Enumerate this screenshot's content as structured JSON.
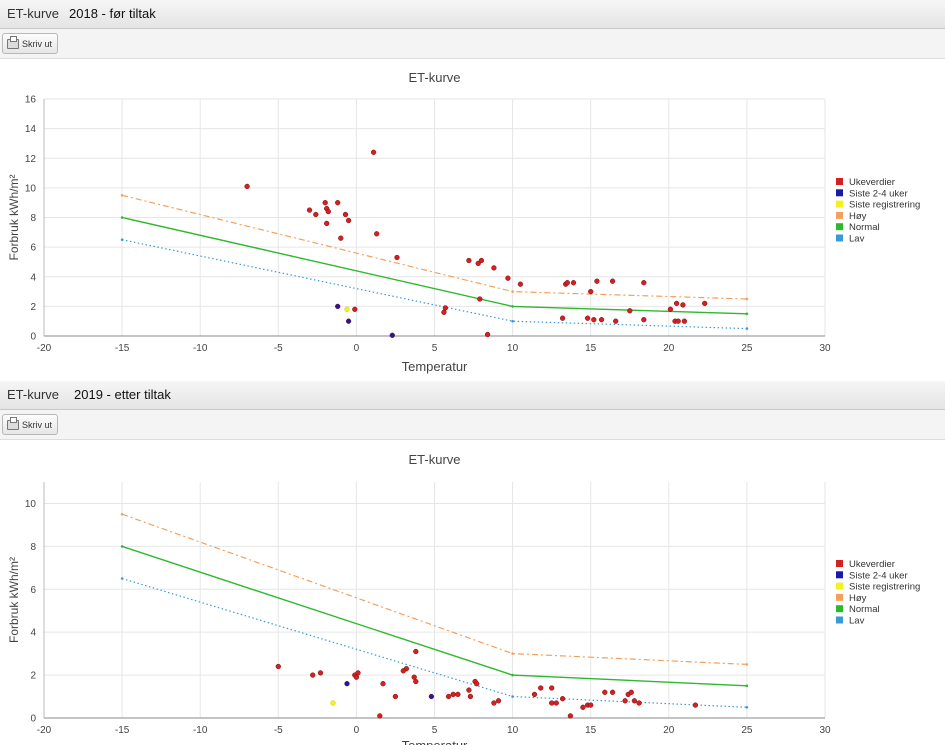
{
  "top": {
    "app_label": "ET-kurve",
    "subtitle": "2018 - før tiltak",
    "print_label": "Skriv ut"
  },
  "bottom": {
    "app_label": "ET-kurve",
    "subtitle": "2019 - etter tiltak",
    "print_label": "Skriv ut"
  },
  "colors": {
    "ukeverdier": "#d42020",
    "siste24": "#1a1aa8",
    "siste_registrering": "#f2f222",
    "hoy": "#f5a05a",
    "normal": "#2eb82e",
    "lav": "#3a9ad9"
  },
  "chart_data": [
    {
      "type": "scatter",
      "title": "ET-kurve",
      "xlabel": "Temperatur",
      "ylabel": "Forbruk kWh/m²",
      "xlim": [
        -20,
        30
      ],
      "ylim": [
        0,
        16
      ],
      "xticks": [
        -20,
        -15,
        -10,
        -5,
        0,
        5,
        10,
        15,
        20,
        25,
        30
      ],
      "yticks": [
        0,
        2,
        4,
        6,
        8,
        10,
        12,
        14,
        16
      ],
      "grid": true,
      "legend_position": "right",
      "legend": [
        "Ukeverdier",
        "Siste 2-4 uker",
        "Siste registrering",
        "Høy",
        "Normal",
        "Lav"
      ],
      "series": [
        {
          "name": "Ukeverdier",
          "kind": "points",
          "points": [
            [
              -7,
              10.1
            ],
            [
              1.1,
              12.4
            ],
            [
              -3,
              8.5
            ],
            [
              -2.6,
              8.2
            ],
            [
              -2,
              9
            ],
            [
              -1.9,
              8.6
            ],
            [
              -1.8,
              8.4
            ],
            [
              -1.9,
              7.6
            ],
            [
              -1.2,
              9
            ],
            [
              -0.7,
              8.2
            ],
            [
              -0.5,
              7.8
            ],
            [
              -1,
              6.6
            ],
            [
              1.3,
              6.9
            ],
            [
              2.6,
              5.3
            ],
            [
              5.7,
              1.9
            ],
            [
              5.6,
              1.6
            ],
            [
              7.2,
              5.1
            ],
            [
              7.8,
              4.9
            ],
            [
              8,
              5.1
            ],
            [
              8.8,
              4.6
            ],
            [
              7.9,
              2.5
            ],
            [
              9.7,
              3.9
            ],
            [
              10.5,
              3.5
            ],
            [
              8.4,
              0.1
            ],
            [
              13.4,
              3.5
            ],
            [
              13.5,
              3.6
            ],
            [
              13.9,
              3.6
            ],
            [
              15.4,
              3.7
            ],
            [
              16.4,
              3.7
            ],
            [
              18.4,
              3.6
            ],
            [
              15,
              3
            ],
            [
              13.2,
              1.2
            ],
            [
              14.8,
              1.2
            ],
            [
              15.2,
              1.1
            ],
            [
              15.7,
              1.1
            ],
            [
              16.6,
              1
            ],
            [
              17.5,
              1.7
            ],
            [
              18.4,
              1.1
            ],
            [
              20.1,
              1.8
            ],
            [
              20.5,
              2.2
            ],
            [
              20.9,
              2.1
            ],
            [
              22.3,
              2.2
            ],
            [
              20.4,
              1
            ],
            [
              20.6,
              1
            ],
            [
              21,
              1
            ],
            [
              -0.1,
              1.8
            ]
          ]
        },
        {
          "name": "Siste 2-4 uker",
          "kind": "points",
          "points": [
            [
              -1.2,
              2
            ],
            [
              -0.5,
              1
            ],
            [
              2.3,
              0.05
            ]
          ]
        },
        {
          "name": "Siste registrering",
          "kind": "points",
          "points": [
            [
              -0.6,
              1.8
            ]
          ]
        },
        {
          "name": "Høy",
          "kind": "line",
          "x": [
            -15,
            10,
            25
          ],
          "y": [
            9.5,
            3,
            2.5
          ]
        },
        {
          "name": "Normal",
          "kind": "line",
          "x": [
            -15,
            10,
            25
          ],
          "y": [
            8,
            2,
            1.5
          ]
        },
        {
          "name": "Lav",
          "kind": "line",
          "x": [
            -15,
            10,
            25
          ],
          "y": [
            6.5,
            1,
            0.5
          ]
        }
      ]
    },
    {
      "type": "scatter",
      "title": "ET-kurve",
      "xlabel": "Temperatur",
      "ylabel": "Forbruk kWh/m²",
      "xlim": [
        -20,
        30
      ],
      "ylim": [
        0,
        11
      ],
      "xticks": [
        -20,
        -15,
        -10,
        -5,
        0,
        5,
        10,
        15,
        20,
        25,
        30
      ],
      "yticks": [
        0,
        2,
        4,
        6,
        8,
        10
      ],
      "grid": true,
      "legend_position": "right",
      "legend": [
        "Ukeverdier",
        "Siste 2-4 uker",
        "Siste registrering",
        "Høy",
        "Normal",
        "Lav"
      ],
      "series": [
        {
          "name": "Ukeverdier",
          "kind": "points",
          "points": [
            [
              -5,
              2.4
            ],
            [
              -2.8,
              2
            ],
            [
              -2.3,
              2.1
            ],
            [
              -0.1,
              2
            ],
            [
              0,
              1.9
            ],
            [
              0.1,
              2.1
            ],
            [
              1.5,
              0.1
            ],
            [
              1.7,
              1.6
            ],
            [
              2.5,
              1
            ],
            [
              3,
              2.2
            ],
            [
              3.2,
              2.3
            ],
            [
              3.7,
              1.9
            ],
            [
              3.8,
              1.7
            ],
            [
              3.8,
              3.1
            ],
            [
              5.9,
              1
            ],
            [
              6.2,
              1.1
            ],
            [
              6.5,
              1.1
            ],
            [
              7.2,
              1.3
            ],
            [
              7.3,
              1
            ],
            [
              7.6,
              1.7
            ],
            [
              7.7,
              1.6
            ],
            [
              8.8,
              0.7
            ],
            [
              9.1,
              0.8
            ],
            [
              11.4,
              1.1
            ],
            [
              11.8,
              1.4
            ],
            [
              12.5,
              1.4
            ],
            [
              12.5,
              0.7
            ],
            [
              12.8,
              0.7
            ],
            [
              13.2,
              0.9
            ],
            [
              13.7,
              0.1
            ],
            [
              14.5,
              0.5
            ],
            [
              14.8,
              0.6
            ],
            [
              15,
              0.6
            ],
            [
              15.9,
              1.2
            ],
            [
              16.4,
              1.2
            ],
            [
              17.2,
              0.8
            ],
            [
              17.4,
              1.1
            ],
            [
              17.6,
              1.2
            ],
            [
              17.8,
              0.8
            ],
            [
              18.1,
              0.7
            ],
            [
              21.7,
              0.6
            ]
          ]
        },
        {
          "name": "Siste 2-4 uker",
          "kind": "points",
          "points": [
            [
              -0.6,
              1.6
            ],
            [
              4.8,
              1
            ]
          ]
        },
        {
          "name": "Siste registrering",
          "kind": "points",
          "points": [
            [
              -1.5,
              0.7
            ]
          ]
        },
        {
          "name": "Høy",
          "kind": "line",
          "x": [
            -15,
            10,
            25
          ],
          "y": [
            9.5,
            3,
            2.5
          ]
        },
        {
          "name": "Normal",
          "kind": "line",
          "x": [
            -15,
            10,
            25
          ],
          "y": [
            8,
            2,
            1.5
          ]
        },
        {
          "name": "Lav",
          "kind": "line",
          "x": [
            -15,
            10,
            25
          ],
          "y": [
            6.5,
            1,
            0.5
          ]
        }
      ]
    }
  ]
}
